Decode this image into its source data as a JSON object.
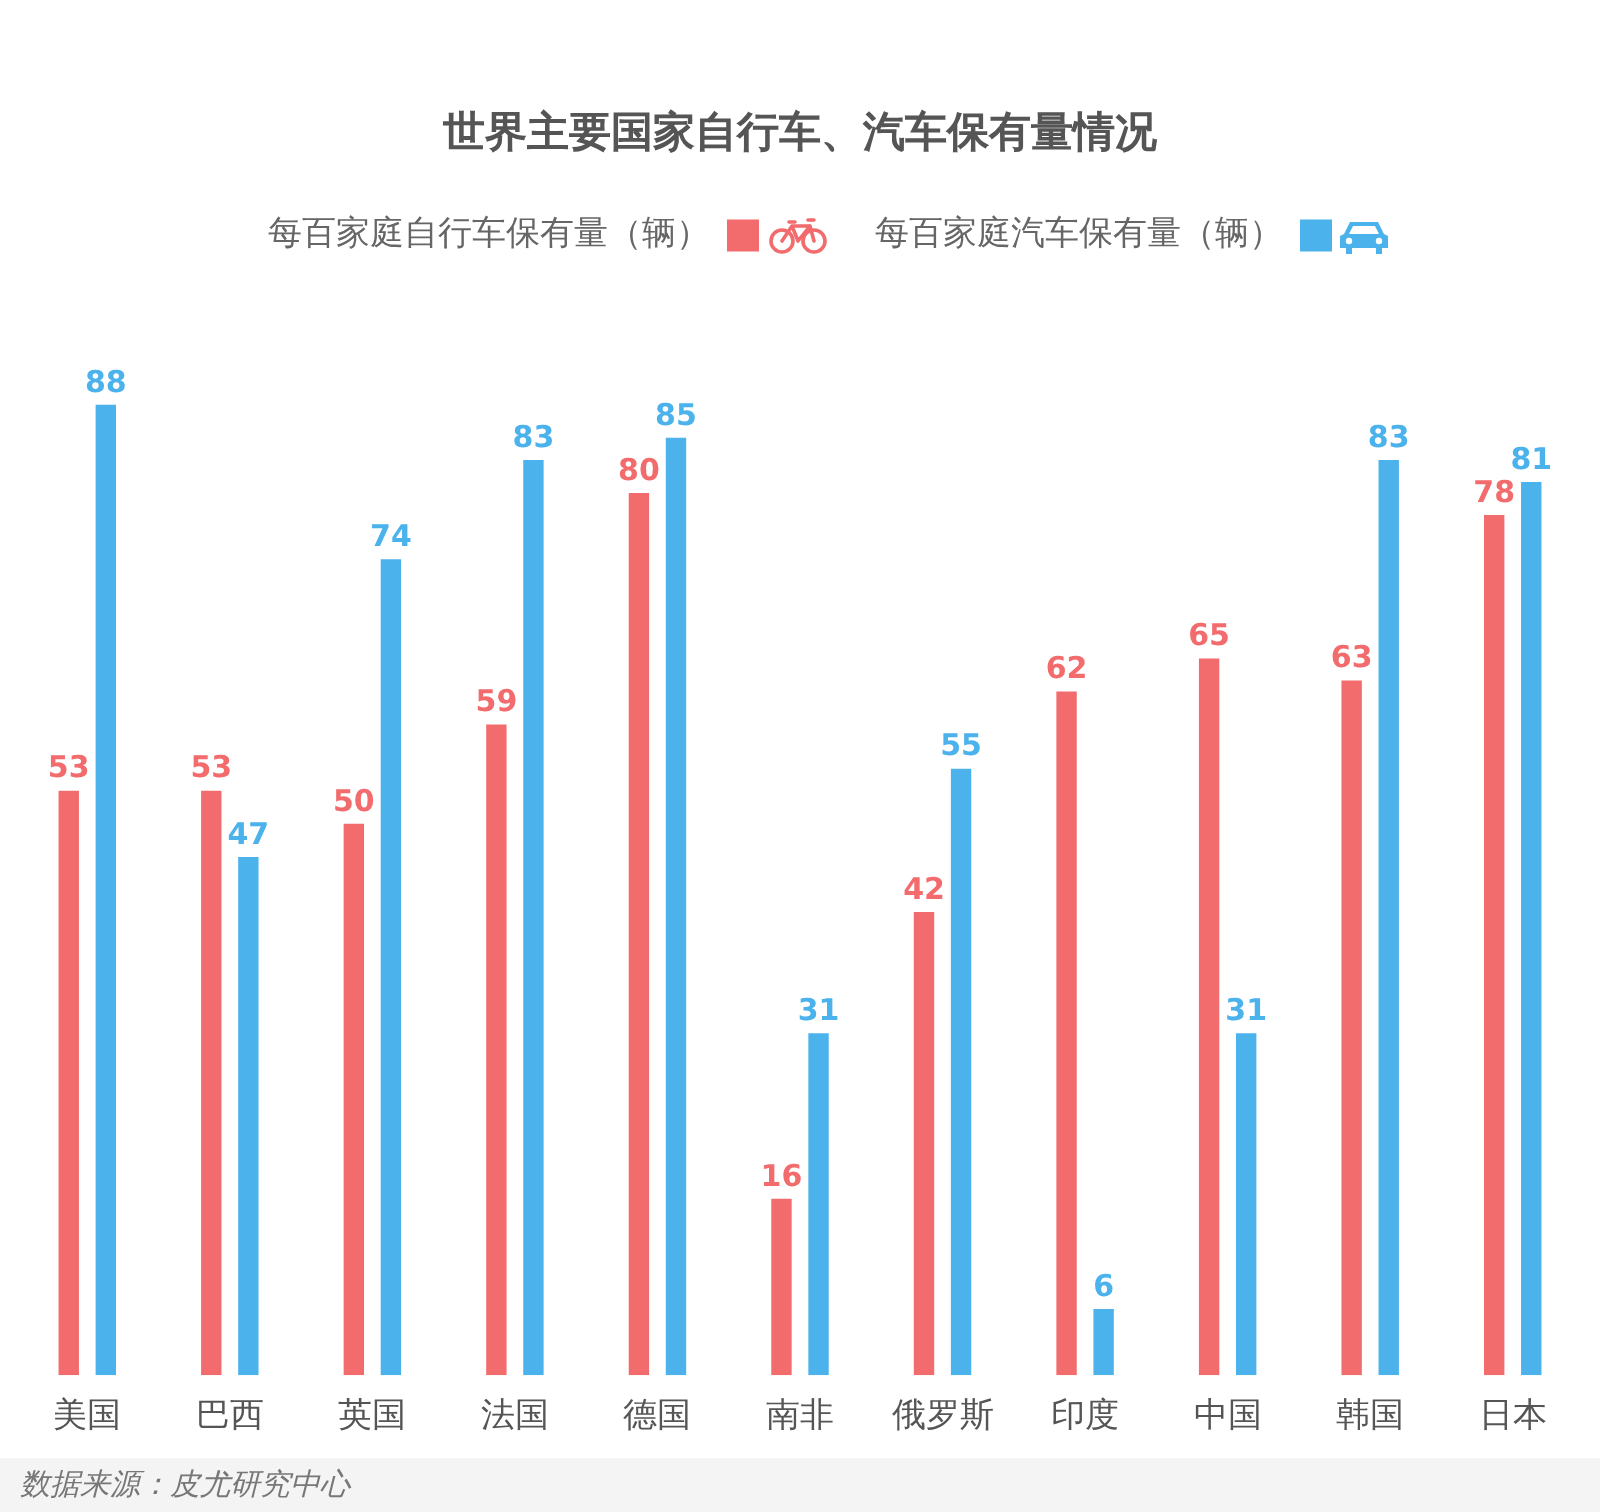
{
  "chart_data": {
    "type": "bar",
    "title": "世界主要国家自行车、汽车保有量情况",
    "categories": [
      "美国",
      "巴西",
      "英国",
      "法国",
      "德国",
      "南非",
      "俄罗斯",
      "印度",
      "中国",
      "韩国",
      "日本"
    ],
    "series": [
      {
        "name": "每百家庭自行车保有量（辆）",
        "color": "#f26b6d",
        "values": [
          53,
          53,
          50,
          59,
          80,
          16,
          42,
          62,
          65,
          63,
          78
        ]
      },
      {
        "name": "每百家庭汽车保有量（辆）",
        "color": "#4bb2ec",
        "values": [
          88,
          47,
          74,
          83,
          85,
          31,
          55,
          6,
          31,
          83,
          81
        ]
      }
    ],
    "data_labels": true,
    "legend": "top",
    "grid": false,
    "annotations": [
      "数据来源：皮尤研究中心"
    ]
  }
}
